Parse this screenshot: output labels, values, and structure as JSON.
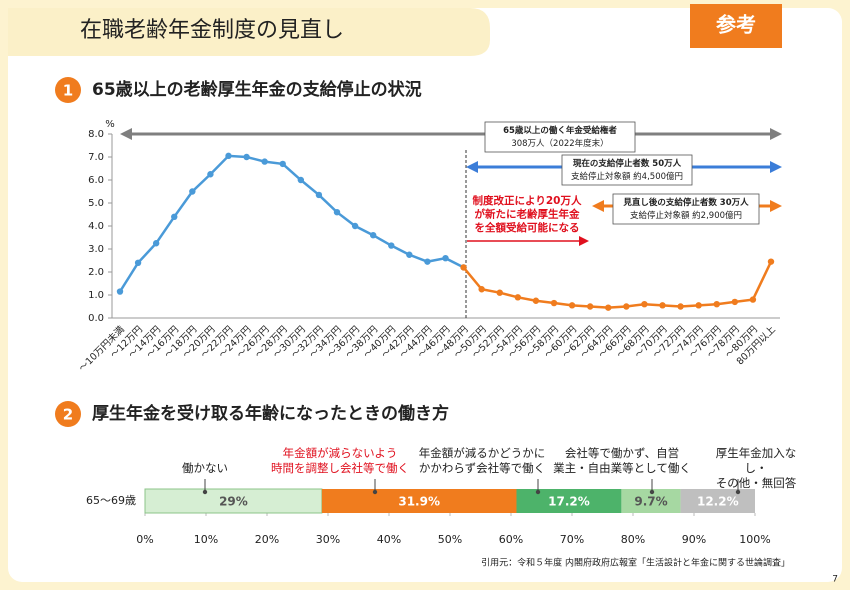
{
  "header": {
    "title": "在職老齢年金制度の見直し",
    "badge": "参考"
  },
  "sections": [
    {
      "number": "1",
      "title": "65歳以上の老齢厚生年金の支給停止の状況"
    },
    {
      "number": "2",
      "title": "厚生年金を受け取る年齢になったときの働き方"
    }
  ],
  "footer": {
    "source": "引用元：令和５年度 内閣府政府広報室「生活設計と年金に関する世論調査」",
    "page": "7"
  },
  "chart_data": [
    {
      "type": "line",
      "y_label": "%",
      "categories": [
        "～10万円未満",
        "～12万円",
        "～14万円",
        "～16万円",
        "～18万円",
        "～20万円",
        "～22万円",
        "～24万円",
        "～26万円",
        "～28万円",
        "～30万円",
        "～32万円",
        "～34万円",
        "～36万円",
        "～38万円",
        "～40万円",
        "～42万円",
        "～44万円",
        "～46万円",
        "～48万円",
        "～50万円",
        "～52万円",
        "～54万円",
        "～56万円",
        "～58万円",
        "～60万円",
        "～62万円",
        "～64万円",
        "～66万円",
        "～68万円",
        "～70万円",
        "～72万円",
        "～74万円",
        "～76万円",
        "～78万円",
        "～80万円",
        "80万円以上"
      ],
      "series": [
        {
          "color": "#4a9ad8",
          "values": [
            1.15,
            2.4,
            3.25,
            4.4,
            5.5,
            6.25,
            7.05,
            7.0,
            6.8,
            6.7,
            6.0,
            5.35,
            4.6,
            4.0,
            3.6,
            3.15,
            2.75,
            2.45,
            2.6,
            2.2,
            null,
            null,
            null,
            null,
            null,
            null,
            null,
            null,
            null,
            null,
            null,
            null,
            null,
            null,
            null,
            null,
            null
          ]
        },
        {
          "color": "#f07c1e",
          "values": [
            null,
            null,
            null,
            null,
            null,
            null,
            null,
            null,
            null,
            null,
            null,
            null,
            null,
            null,
            null,
            null,
            null,
            null,
            null,
            2.2,
            1.25,
            1.1,
            0.9,
            0.75,
            0.65,
            0.55,
            0.5,
            0.45,
            0.5,
            0.6,
            0.55,
            0.5,
            0.55,
            0.6,
            0.7,
            0.8,
            2.45
          ]
        }
      ],
      "ylim": [
        0,
        8
      ],
      "yticks": [
        {
          "value": 0,
          "label": "0.0"
        },
        {
          "value": 1,
          "label": "1.0"
        },
        {
          "value": 2,
          "label": "2.0"
        },
        {
          "value": 3,
          "label": "3.0"
        },
        {
          "value": 4,
          "label": "4.0"
        },
        {
          "value": 5,
          "label": "5.0"
        },
        {
          "value": 6,
          "label": "6.0"
        },
        {
          "value": 7,
          "label": "7.0"
        },
        {
          "value": 8,
          "label": "8.0"
        }
      ],
      "annotations": [
        {
          "lines": [
            "65歳以上の働く年金受給権者",
            "308万人（2022年度末）"
          ],
          "color": "#7f7f7f"
        },
        {
          "lines": [
            "現在の支給停止者数  50万人",
            "支給停止対象額  約4,500億円"
          ],
          "color": "#3b7dd8"
        },
        {
          "lines": [
            "見直し後の支給停止者数  30万人",
            "支給停止対象額  約2,900億円"
          ],
          "color": "#f07c1e"
        },
        {
          "lines": [
            "制度改正により20万人",
            "が新たに老齢厚生年金",
            "を全額受給可能になる"
          ],
          "color": "#e0101e"
        }
      ]
    },
    {
      "type": "stacked_bar",
      "orientation": "horizontal",
      "categories": [
        "65～69歳"
      ],
      "series": [
        {
          "name": "働かない",
          "color": "#d6eed3",
          "values": [
            29
          ],
          "value_labels": [
            "29%"
          ]
        },
        {
          "name": "年金額が減らないよう\n時間を調整し会社等で働く",
          "color": "#f07c1e",
          "values": [
            31.9
          ],
          "value_labels": [
            "31.9%"
          ]
        },
        {
          "name": "年金額が減るかどうかに\nかかわらず会社等で働く",
          "color": "#4db36a",
          "values": [
            17.2
          ],
          "value_labels": [
            "17.2%"
          ]
        },
        {
          "name": "会社等で働かず、自営\n業主・自由業等として働く",
          "color": "#a6d8a2",
          "values": [
            9.7
          ],
          "value_labels": [
            "9.7%"
          ]
        },
        {
          "name": "厚生年金加入なし・\nその他・無回答",
          "color": "#bfbfbf",
          "values": [
            12.2
          ],
          "value_labels": [
            "12.2%"
          ]
        }
      ],
      "xlim": [
        0,
        100
      ],
      "xticks": [
        {
          "value": 0,
          "label": "0%"
        },
        {
          "value": 10,
          "label": "10%"
        },
        {
          "value": 20,
          "label": "20%"
        },
        {
          "value": 30,
          "label": "30%"
        },
        {
          "value": 40,
          "label": "40%"
        },
        {
          "value": 50,
          "label": "50%"
        },
        {
          "value": 60,
          "label": "60%"
        },
        {
          "value": 70,
          "label": "70%"
        },
        {
          "value": 80,
          "label": "80%"
        },
        {
          "value": 90,
          "label": "90%"
        },
        {
          "value": 100,
          "label": "100%"
        }
      ]
    }
  ]
}
